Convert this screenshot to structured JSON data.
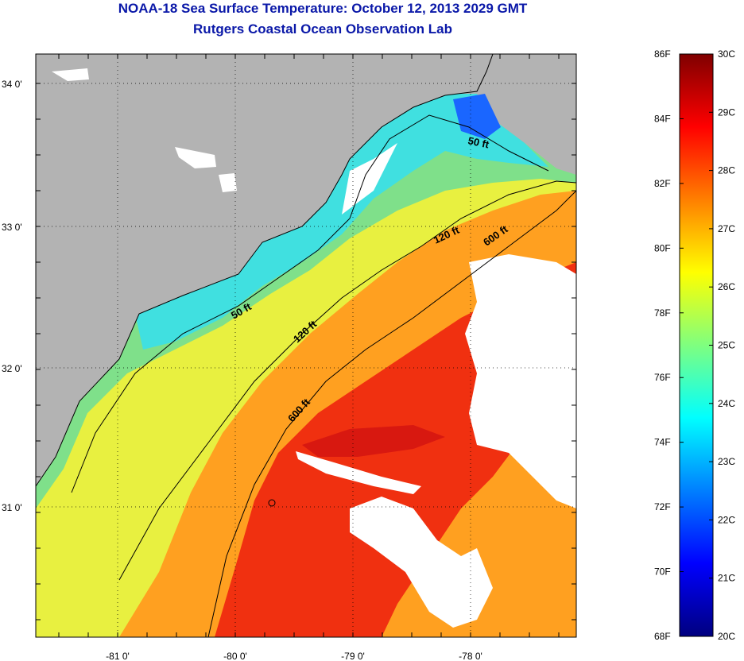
{
  "title": "NOAA-18 Sea Surface Temperature:  October 12, 2013 2029 GMT",
  "subtitle": "Rutgers Coastal Ocean Observation Lab",
  "map": {
    "lon_ticks": [
      "-81 0'",
      "-80 0'",
      "-79 0'",
      "-78 0'"
    ],
    "lat_ticks": [
      "34 0'",
      "33 0'",
      "32 0'",
      "31 0'"
    ],
    "contour_labels": [
      "50 ft",
      "50 ft",
      "120 ft",
      "120 ft",
      "600 ft",
      "600 ft"
    ],
    "colors": {
      "land": "#b3b3b3",
      "cloud": "#ffffff",
      "coastline": "#000000"
    }
  },
  "colorbar": {
    "f_labels": [
      "86F",
      "84F",
      "82F",
      "80F",
      "78F",
      "76F",
      "74F",
      "72F",
      "70F",
      "68F"
    ],
    "c_labels": [
      "30C",
      "29C",
      "28C",
      "27C",
      "26C",
      "25C",
      "24C",
      "23C",
      "22C",
      "21C",
      "20C"
    ],
    "range_c": [
      20,
      30
    ],
    "colors": [
      "#00007f",
      "#0000ff",
      "#007fff",
      "#00ffff",
      "#7fff7f",
      "#ffff00",
      "#ff7f00",
      "#ff0000",
      "#7f0000"
    ]
  }
}
